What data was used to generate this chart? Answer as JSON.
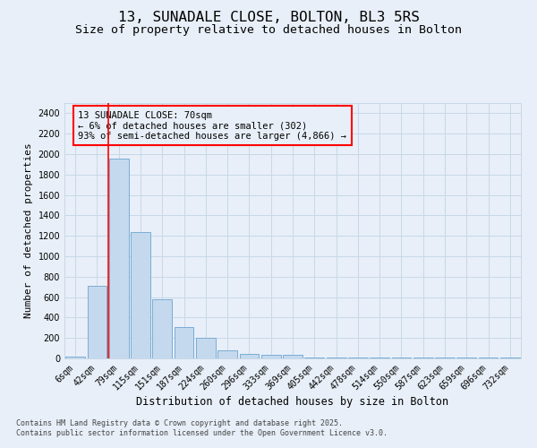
{
  "title_line1": "13, SUNADALE CLOSE, BOLTON, BL3 5RS",
  "title_line2": "Size of property relative to detached houses in Bolton",
  "xlabel": "Distribution of detached houses by size in Bolton",
  "ylabel": "Number of detached properties",
  "categories": [
    "6sqm",
    "42sqm",
    "79sqm",
    "115sqm",
    "151sqm",
    "187sqm",
    "224sqm",
    "260sqm",
    "296sqm",
    "333sqm",
    "369sqm",
    "405sqm",
    "442sqm",
    "478sqm",
    "514sqm",
    "550sqm",
    "587sqm",
    "623sqm",
    "659sqm",
    "696sqm",
    "732sqm"
  ],
  "values": [
    15,
    710,
    1960,
    1240,
    580,
    305,
    200,
    80,
    45,
    35,
    35,
    5,
    5,
    5,
    5,
    5,
    5,
    5,
    5,
    5,
    5
  ],
  "bar_color": "#c5d9ee",
  "bar_edge_color": "#7aadd4",
  "grid_color": "#c8d8e8",
  "background_color": "#e8eff8",
  "annotation_text_line1": "13 SUNADALE CLOSE: 70sqm",
  "annotation_text_line2": "← 6% of detached houses are smaller (302)",
  "annotation_text_line3": "93% of semi-detached houses are larger (4,866) →",
  "red_line_x": 1.5,
  "ylim": [
    0,
    2500
  ],
  "yticks": [
    0,
    200,
    400,
    600,
    800,
    1000,
    1200,
    1400,
    1600,
    1800,
    2000,
    2200,
    2400
  ],
  "footer_line1": "Contains HM Land Registry data © Crown copyright and database right 2025.",
  "footer_line2": "Contains public sector information licensed under the Open Government Licence v3.0.",
  "title_fontsize": 11.5,
  "subtitle_fontsize": 9.5,
  "ylabel_fontsize": 8,
  "xlabel_fontsize": 8.5,
  "tick_fontsize": 7,
  "annotation_fontsize": 7.5,
  "footer_fontsize": 6
}
